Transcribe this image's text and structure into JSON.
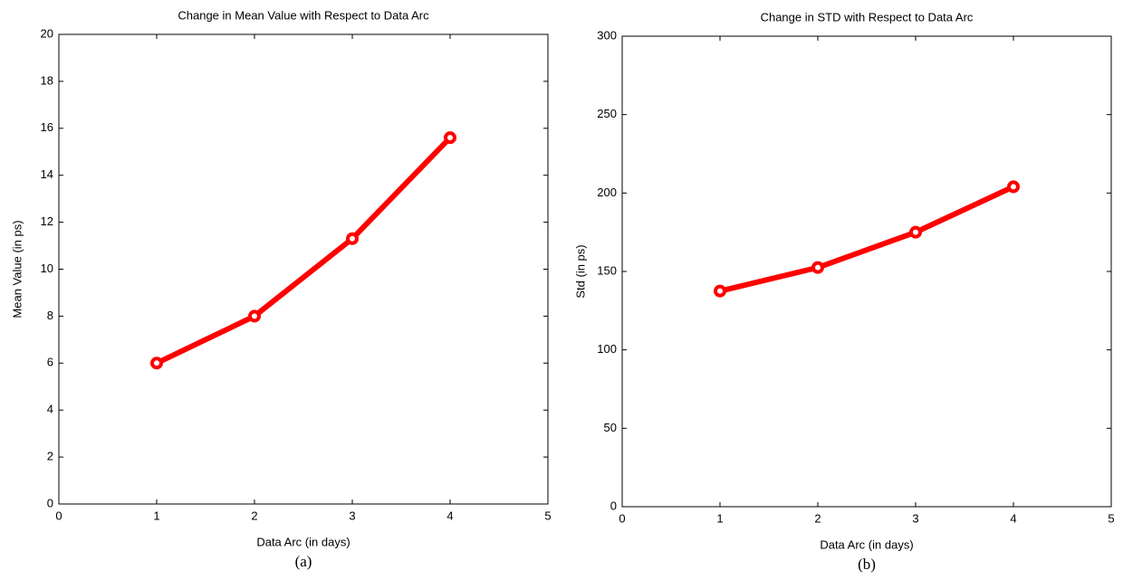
{
  "chart_data": [
    {
      "type": "line",
      "title": "Change in Mean Value with Respect to Data Arc",
      "xlabel": "Data Arc (in days)",
      "ylabel": "Mean Value (in ps)",
      "caption": "(a)",
      "x": [
        1,
        2,
        3,
        4
      ],
      "values": [
        6,
        8,
        11.3,
        15.6
      ],
      "color": "#ff0000",
      "xlim": [
        0,
        5
      ],
      "xticks": [
        0,
        1,
        2,
        3,
        4,
        5
      ],
      "ylim": [
        0,
        20
      ],
      "yticks": [
        0,
        2,
        4,
        6,
        8,
        10,
        12,
        14,
        16,
        18,
        20
      ]
    },
    {
      "type": "line",
      "title": "Change in STD with Respect to Data Arc",
      "xlabel": "Data Arc (in days)",
      "ylabel": "Std (in ps)",
      "caption": "(b)",
      "x": [
        1,
        2,
        3,
        4
      ],
      "values": [
        137.5,
        152.5,
        175,
        204
      ],
      "color": "#ff0000",
      "xlim": [
        0,
        5
      ],
      "xticks": [
        0,
        1,
        2,
        3,
        4,
        5
      ],
      "ylim": [
        0,
        300
      ],
      "yticks": [
        0,
        50,
        100,
        150,
        200,
        250,
        300
      ]
    }
  ]
}
